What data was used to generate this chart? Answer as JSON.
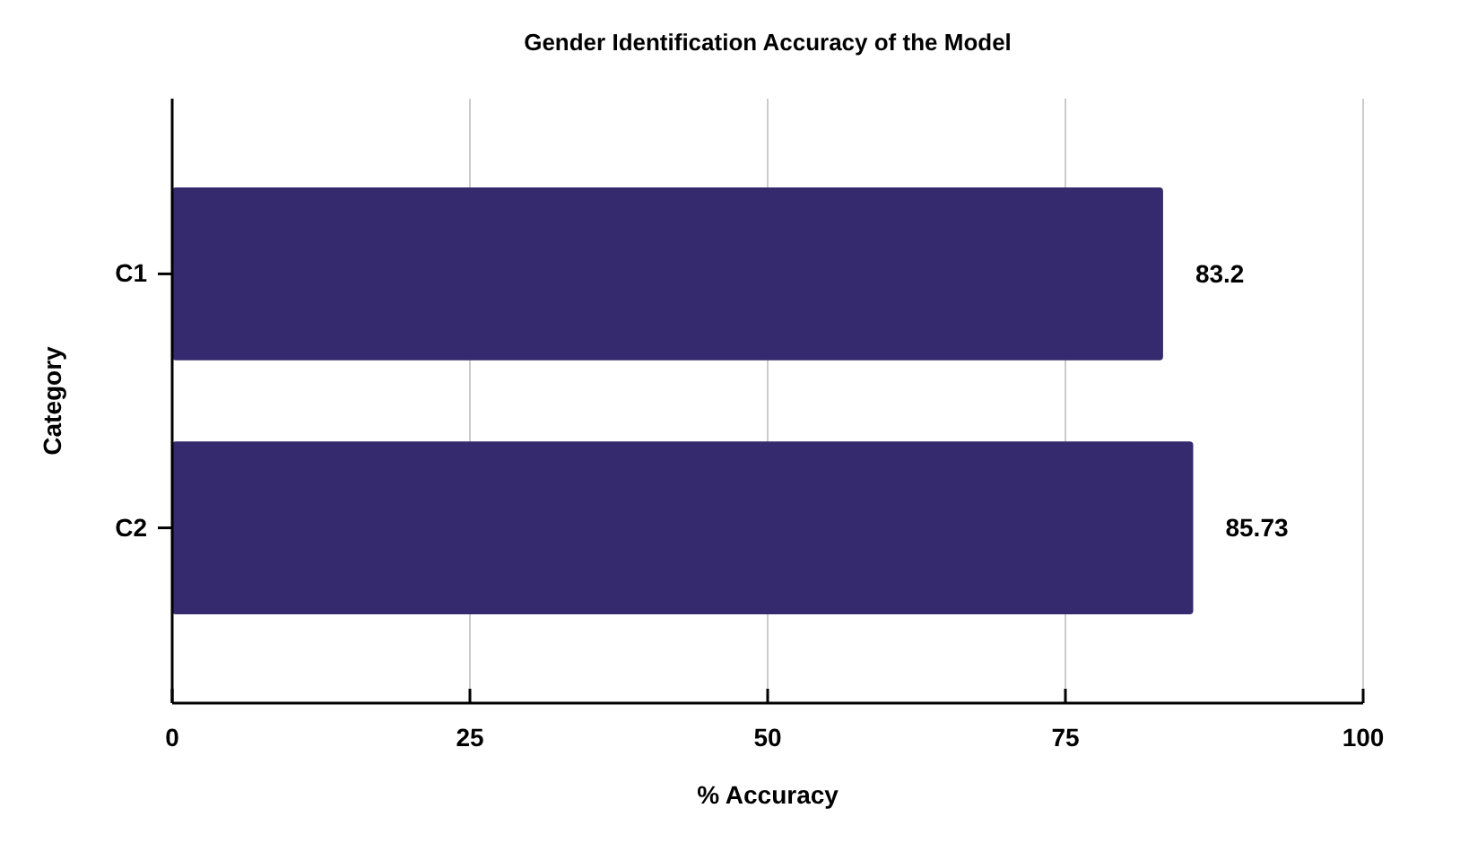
{
  "chart_data": {
    "type": "bar",
    "orientation": "horizontal",
    "title": "Gender Identification Accuracy of the Model",
    "xlabel": "% Accuracy",
    "ylabel": "Category",
    "categories": [
      "C1",
      "C2"
    ],
    "values": [
      83.2,
      85.73
    ],
    "color": "#352a6e",
    "data_labels": true,
    "xlim": [
      0,
      100
    ],
    "xticks": [
      0,
      25,
      50,
      75,
      100
    ],
    "grid": "x"
  }
}
